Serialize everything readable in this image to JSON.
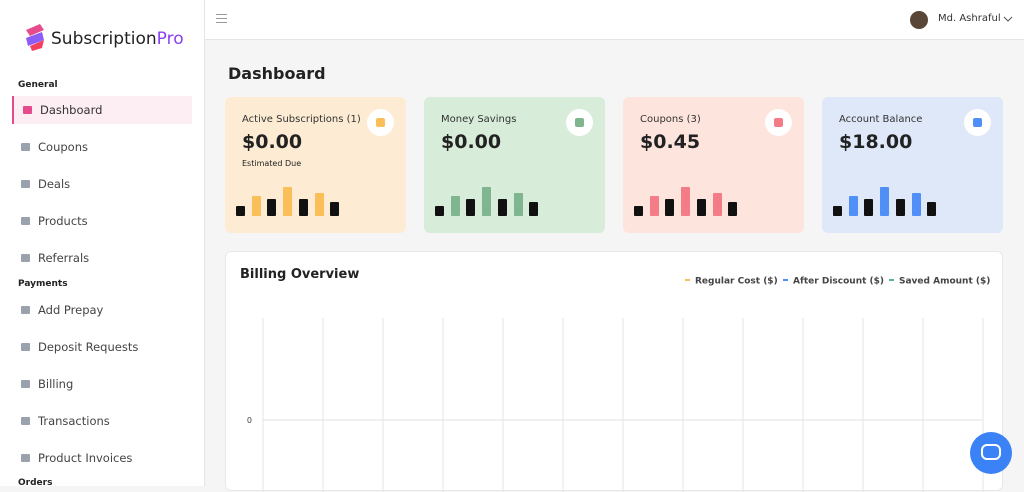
{
  "sidebar": {
    "brand": {
      "name": "Subscription",
      "accent": "Pro"
    },
    "sections": [
      {
        "title": "General",
        "items": [
          {
            "label": "Dashboard",
            "active": true
          },
          {
            "label": "Coupons"
          },
          {
            "label": "Deals"
          },
          {
            "label": "Products"
          },
          {
            "label": "Referrals"
          }
        ]
      },
      {
        "title": "Payments",
        "items": [
          {
            "label": "Add Prepay"
          },
          {
            "label": "Deposit Requests"
          },
          {
            "label": "Billing"
          },
          {
            "label": "Transactions"
          },
          {
            "label": "Product Invoices"
          }
        ]
      },
      {
        "title": "Orders",
        "items": []
      }
    ]
  },
  "topbar": {
    "user": "Md. Ashraful"
  },
  "page_title": "Dashboard",
  "cards": [
    {
      "label": "Active Subscriptions (1)",
      "value": "$0.00",
      "note": "Estimated Due",
      "bg": "#fdecd3",
      "accent": "#fbbf5a"
    },
    {
      "label": "Money Savings",
      "value": "$0.00",
      "bg": "#d7ecd9",
      "accent": "#7fb58f"
    },
    {
      "label": "Coupons (3)",
      "value": "$0.45",
      "bg": "#fde4dd",
      "accent": "#f47c86"
    },
    {
      "label": "Account Balance",
      "value": "$18.00",
      "bg": "#dfe8f8",
      "accent": "#4f8ff7"
    }
  ],
  "billing": {
    "title": "Billing Overview",
    "legend": [
      {
        "name": "Regular Cost ($)",
        "color": "#fbbf5a"
      },
      {
        "name": "After Discount ($)",
        "color": "#4f8ff7"
      },
      {
        "name": "Saved Amount ($)",
        "color": "#5fb3a6"
      }
    ],
    "yticks": [
      0
    ]
  }
}
